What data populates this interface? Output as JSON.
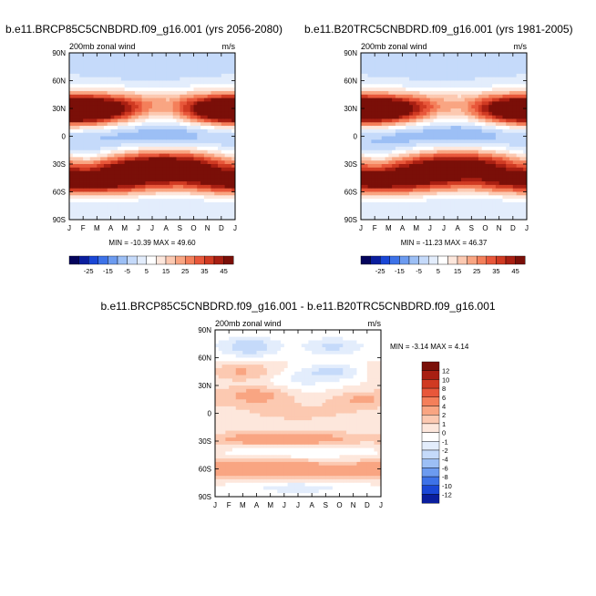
{
  "colors": {
    "warm_scale": [
      "#04045c",
      "#0a1e9e",
      "#1a47d6",
      "#3d72e8",
      "#6c9bf0",
      "#9cbff5",
      "#c5dafa",
      "#e3edfc",
      "#ffffff",
      "#fde7dc",
      "#fcc9b1",
      "#f9a582",
      "#f47f5a",
      "#e8573a",
      "#d03a22",
      "#a81f12",
      "#7a0f08"
    ],
    "diff_scale": [
      "#04045c",
      "#0a1e9e",
      "#1a47d6",
      "#3d72e8",
      "#6c9bf0",
      "#9cbff5",
      "#c5dafa",
      "#e3edfc",
      "#ffffff",
      "#fde7dc",
      "#fcc9b1",
      "#f9a582",
      "#f47f5a",
      "#e8573a",
      "#d03a22",
      "#a81f12",
      "#7a0f08"
    ]
  },
  "axes": {
    "month_labels": [
      "J",
      "F",
      "M",
      "A",
      "M",
      "J",
      "J",
      "A",
      "S",
      "O",
      "N",
      "D",
      "J"
    ],
    "lat_labels": [
      "90N",
      "60N",
      "30N",
      "0",
      "30S",
      "60S",
      "90S"
    ]
  },
  "chart_data": [
    {
      "type": "heatmap",
      "title": "b.e11.BRCP85C5CNBDRD.f09_g16.001 (yrs 2056-2080)",
      "subtitle_left": "200mb zonal wind",
      "subtitle_right": "m/s",
      "stats": "MIN = -10.39 MAX =  49.60",
      "x_range": [
        0,
        12
      ],
      "y_range": [
        -90,
        90
      ],
      "colorbar_ticks": [
        "-25",
        "-15",
        "-5",
        "5",
        "15",
        "25",
        "35",
        "45"
      ],
      "field": {
        "features": [
          {
            "lat": 30,
            "month": 1.2,
            "amp": 48,
            "wlat": 11,
            "wmon": 3.2
          },
          {
            "lat": 27,
            "month": 11.8,
            "amp": 38,
            "wlat": 11,
            "wmon": 2.6
          },
          {
            "lat": 40,
            "month": 7,
            "amp": 10,
            "wlat": 10,
            "wmon": 3
          },
          {
            "lat": -30,
            "month": 7.3,
            "amp": 44,
            "wlat": 11,
            "wmon": 3.6
          },
          {
            "lat": -50,
            "month": 2,
            "amp": 30,
            "wlat": 10,
            "wmon": 4
          },
          {
            "lat": -48,
            "month": 11.5,
            "amp": 24,
            "wlat": 10,
            "wmon": 3
          },
          {
            "lat": -40,
            "month": 5,
            "amp": 22,
            "wlat": 12,
            "wmon": 3
          },
          {
            "lat": 3,
            "month": 7.5,
            "amp": -10,
            "wlat": 9,
            "wmon": 2.8
          },
          {
            "lat": 0,
            "month": 2.5,
            "amp": -5,
            "wlat": 8,
            "wmon": 2
          },
          {
            "lat": -15,
            "month": 1,
            "amp": -6,
            "wlat": 7,
            "wmon": 2
          },
          {
            "lat": 70,
            "month": 6,
            "amp": -2,
            "wlat": 10,
            "wmon": 3
          }
        ]
      }
    },
    {
      "type": "heatmap",
      "title": "b.e11.B20TRC5CNBDRD.f09_g16.001 (yrs 1981-2005)",
      "subtitle_left": "200mb zonal wind",
      "subtitle_right": "m/s",
      "stats": "MIN = -11.23 MAX =  46.37",
      "x_range": [
        0,
        12
      ],
      "y_range": [
        -90,
        90
      ],
      "colorbar_ticks": [
        "-25",
        "-15",
        "-5",
        "5",
        "15",
        "25",
        "35",
        "45"
      ],
      "field": {
        "features": [
          {
            "lat": 30,
            "month": 1.2,
            "amp": 45,
            "wlat": 11,
            "wmon": 3.2
          },
          {
            "lat": 27,
            "month": 11.8,
            "amp": 36,
            "wlat": 11,
            "wmon": 2.6
          },
          {
            "lat": 40,
            "month": 7,
            "amp": 9,
            "wlat": 10,
            "wmon": 3
          },
          {
            "lat": -30,
            "month": 7.3,
            "amp": 42,
            "wlat": 11,
            "wmon": 3.6
          },
          {
            "lat": -50,
            "month": 2,
            "amp": 28,
            "wlat": 10,
            "wmon": 4
          },
          {
            "lat": -48,
            "month": 11.5,
            "amp": 22,
            "wlat": 10,
            "wmon": 3
          },
          {
            "lat": -40,
            "month": 5,
            "amp": 20,
            "wlat": 12,
            "wmon": 3
          },
          {
            "lat": 3,
            "month": 7.5,
            "amp": -11,
            "wlat": 9,
            "wmon": 2.8
          },
          {
            "lat": 0,
            "month": 2.5,
            "amp": -6,
            "wlat": 8,
            "wmon": 2
          },
          {
            "lat": -15,
            "month": 1,
            "amp": -6,
            "wlat": 7,
            "wmon": 2
          },
          {
            "lat": 70,
            "month": 6,
            "amp": -2,
            "wlat": 10,
            "wmon": 3
          }
        ]
      }
    },
    {
      "type": "heatmap",
      "title": "b.e11.BRCP85C5CNBDRD.f09_g16.001 - b.e11.B20TRC5CNBDRD.f09_g16.001",
      "subtitle_left": "200mb zonal wind",
      "subtitle_right": "m/s",
      "stats": "MIN =  -3.14 MAX =   4.14",
      "x_range": [
        0,
        12
      ],
      "y_range": [
        -90,
        90
      ],
      "colorbar_labels": [
        "12",
        "10",
        "8",
        "6",
        "4",
        "2",
        "1",
        "0",
        "-1",
        "-2",
        "-4",
        "-6",
        "-8",
        "-10",
        "-12"
      ],
      "field": {
        "features": [
          {
            "lat": 72,
            "month": 2.5,
            "amp": -3,
            "wlat": 8,
            "wmon": 1.5
          },
          {
            "lat": 72,
            "month": 8.5,
            "amp": -2.3,
            "wlat": 7,
            "wmon": 1.6
          },
          {
            "lat": 45,
            "month": 2,
            "amp": 2.2,
            "wlat": 7,
            "wmon": 1.8
          },
          {
            "lat": 45,
            "month": 8.5,
            "amp": -2.2,
            "wlat": 6,
            "wmon": 1.6
          },
          {
            "lat": 20,
            "month": 3,
            "amp": 2.5,
            "wlat": 8,
            "wmon": 1.8
          },
          {
            "lat": 15,
            "month": 10.5,
            "amp": 2,
            "wlat": 7,
            "wmon": 1.5
          },
          {
            "lat": 35,
            "month": 6,
            "amp": -1.2,
            "wlat": 8,
            "wmon": 2
          },
          {
            "lat": 0,
            "month": 6,
            "amp": 1.2,
            "wlat": 10,
            "wmon": 4
          },
          {
            "lat": -28,
            "month": 5,
            "amp": 3.5,
            "wlat": 6,
            "wmon": 4
          },
          {
            "lat": -40,
            "month": 6,
            "amp": -1.5,
            "wlat": 5,
            "wmon": 3
          },
          {
            "lat": -60,
            "month": 3,
            "amp": 3.5,
            "wlat": 7,
            "wmon": 3
          },
          {
            "lat": -62,
            "month": 9,
            "amp": 2.5,
            "wlat": 7,
            "wmon": 3
          },
          {
            "lat": -80,
            "month": 6,
            "amp": -1.5,
            "wlat": 6,
            "wmon": 3
          }
        ]
      }
    }
  ]
}
